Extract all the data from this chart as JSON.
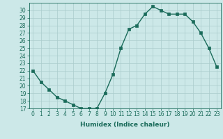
{
  "x": [
    0,
    1,
    2,
    3,
    4,
    5,
    6,
    7,
    8,
    9,
    10,
    11,
    12,
    13,
    14,
    15,
    16,
    17,
    18,
    19,
    20,
    21,
    22,
    23
  ],
  "y": [
    22,
    20.5,
    19.5,
    18.5,
    18,
    17.5,
    17,
    17,
    17,
    19,
    21.5,
    25,
    27.5,
    28,
    29.5,
    30.5,
    30,
    29.5,
    29.5,
    29.5,
    28.5,
    27,
    25,
    22.5
  ],
  "line_color": "#1a6b5a",
  "bg_color": "#cce8e8",
  "grid_color": "#aacccc",
  "xlabel": "Humidex (Indice chaleur)",
  "xlim": [
    -0.5,
    23.5
  ],
  "ylim": [
    17,
    31
  ],
  "yticks": [
    17,
    18,
    19,
    20,
    21,
    22,
    23,
    24,
    25,
    26,
    27,
    28,
    29,
    30
  ],
  "xtick_labels": [
    "0",
    "1",
    "2",
    "3",
    "4",
    "5",
    "6",
    "7",
    "8",
    "9",
    "10",
    "11",
    "12",
    "13",
    "14",
    "15",
    "16",
    "17",
    "18",
    "19",
    "20",
    "21",
    "22",
    "23"
  ],
  "marker": "s",
  "markersize": 2.5,
  "linewidth": 1.0,
  "tick_fontsize": 5.5,
  "xlabel_fontsize": 6.5
}
